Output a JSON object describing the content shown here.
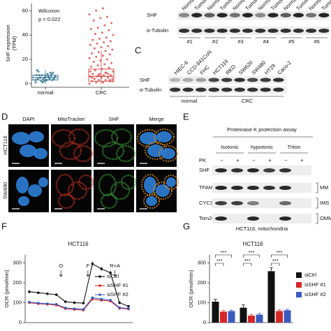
{
  "chart_data": [
    {
      "type": "box",
      "ylabel_lines": [
        "SHF expression",
        "(TPM)"
      ],
      "annotations": [
        "Wilcoxon",
        "p = 0.022"
      ],
      "categories": [
        "normal",
        "CRC"
      ],
      "colors": [
        "#3d7a94",
        "#d9534f"
      ],
      "ylim": [
        -3,
        66
      ],
      "yticks": [
        0,
        20,
        40,
        60
      ],
      "boxes": [
        {
          "whisker_low": 0,
          "q1": 3,
          "median": 5,
          "q3": 7,
          "whisker_high": 11
        },
        {
          "whisker_low": 0,
          "q1": 2,
          "median": 6,
          "q3": 12,
          "whisker_high": 27
        }
      ],
      "points": [
        [
          1,
          2,
          3,
          3,
          4,
          4,
          5,
          5,
          5,
          6,
          6,
          7,
          7,
          8,
          9,
          10,
          2,
          4,
          6,
          5,
          3,
          8,
          11,
          1,
          6,
          4,
          7,
          5,
          9,
          3
        ],
        [
          0,
          1,
          1,
          2,
          2,
          3,
          3,
          4,
          4,
          5,
          5,
          6,
          6,
          7,
          7,
          8,
          8,
          9,
          10,
          11,
          12,
          13,
          14,
          15,
          16,
          17,
          18,
          19,
          20,
          21,
          22,
          23,
          24,
          25,
          26,
          27,
          28,
          29,
          30,
          31,
          32,
          33,
          34,
          35,
          36,
          37,
          38,
          40,
          41,
          42,
          44,
          45,
          46,
          48,
          50,
          52,
          54,
          55,
          57,
          60,
          62,
          3,
          5,
          7,
          9,
          2,
          4,
          6,
          8,
          10
        ]
      ]
    },
    {
      "type": "line",
      "panel_label": "F",
      "title": "HCT116",
      "ylabel": "OCR (pmol/min)",
      "annotations": [
        "O",
        "F",
        "R+A"
      ],
      "categories": [
        null,
        null,
        null,
        null,
        null,
        null,
        null,
        null,
        null,
        null,
        null,
        null
      ],
      "ylim": [
        0,
        340
      ],
      "yticks": [
        0,
        100,
        200,
        300
      ],
      "series": [
        {
          "name": "siCtrl",
          "color": "#111111",
          "values": [
            155,
            150,
            145,
            140,
            105,
            100,
            98,
            295,
            270,
            250,
            100,
            82
          ],
          "errors": [
            8,
            6,
            6,
            6,
            6,
            5,
            5,
            12,
            10,
            10,
            6,
            5
          ]
        },
        {
          "name": "siSHF #1",
          "color": "#d62728",
          "values": [
            100,
            95,
            92,
            88,
            70,
            66,
            63,
            118,
            112,
            108,
            72,
            68
          ],
          "errors": [
            5,
            5,
            4,
            4,
            4,
            4,
            4,
            6,
            6,
            6,
            4,
            4
          ]
        },
        {
          "name": "siSHF #2",
          "color": "#3b5bbf",
          "values": [
            103,
            98,
            95,
            92,
            74,
            70,
            67,
            125,
            118,
            113,
            75,
            71
          ],
          "errors": [
            5,
            5,
            4,
            4,
            4,
            4,
            4,
            6,
            6,
            6,
            4,
            4
          ]
        }
      ]
    },
    {
      "type": "bar",
      "panel_label": "G",
      "title": "HCT116",
      "ylabel": "OCR (pmol/min)",
      "categories": [
        null,
        null,
        null
      ],
      "ylim": [
        0,
        340
      ],
      "yticks": [
        0,
        100,
        200,
        300
      ],
      "significance": [
        "***",
        "***",
        "***",
        "***",
        "***",
        "***"
      ],
      "series": [
        {
          "name": "siCtrl",
          "color": "#111111",
          "values": [
            105,
            75,
            258
          ],
          "errors": [
            12,
            14,
            18
          ]
        },
        {
          "name": "siSHF #1",
          "color": "#d62728",
          "values": [
            55,
            35,
            58
          ],
          "errors": [
            6,
            5,
            6
          ]
        },
        {
          "name": "siSHF #2",
          "color": "#3b5bbf",
          "values": [
            58,
            40,
            62
          ],
          "errors": [
            5,
            6,
            5
          ]
        }
      ]
    }
  ],
  "panel_b": {
    "lanes": [
      "Normal",
      "Tumor",
      "Normal",
      "Tumor",
      "Normal",
      "Tumor",
      "Normal",
      "Tumor",
      "Normal",
      "Tumor",
      "Normal",
      "Tumor"
    ],
    "rows": [
      "SHF",
      "α-Tubulin"
    ],
    "pairs": [
      "#1",
      "#2",
      "#3",
      "#4",
      "#5",
      "#6"
    ]
  },
  "panel_c": {
    "label": "C",
    "lanes": [
      "HIEC-6",
      "CCD-841CoN",
      "FHC",
      "HCT116",
      "RKO",
      "SW620",
      "SW480",
      "HT29",
      "Caco-2"
    ],
    "rows": [
      "SHF",
      "α-Tubulin"
    ],
    "groups": [
      "normal",
      "CRC"
    ]
  },
  "panel_d": {
    "label": "D",
    "columns": [
      "DAPI",
      "MitoTracker",
      "SHF",
      "Merge"
    ],
    "rows": [
      "HCT116",
      "SW480"
    ]
  },
  "panel_e": {
    "label": "E",
    "title": "Proteinase K protection assay",
    "conditions": [
      "Isotonic",
      "hypotonic",
      "Triton"
    ],
    "pk_label": "PK",
    "pk_states": [
      "−",
      "+",
      "−",
      "+",
      "−",
      "+"
    ],
    "rows": [
      "SHF",
      "TFAM",
      "CYCS",
      "Tom20"
    ],
    "compartments": [
      "MM",
      "IMS",
      "OMM"
    ],
    "caption": "HCT116, mitochondria"
  }
}
